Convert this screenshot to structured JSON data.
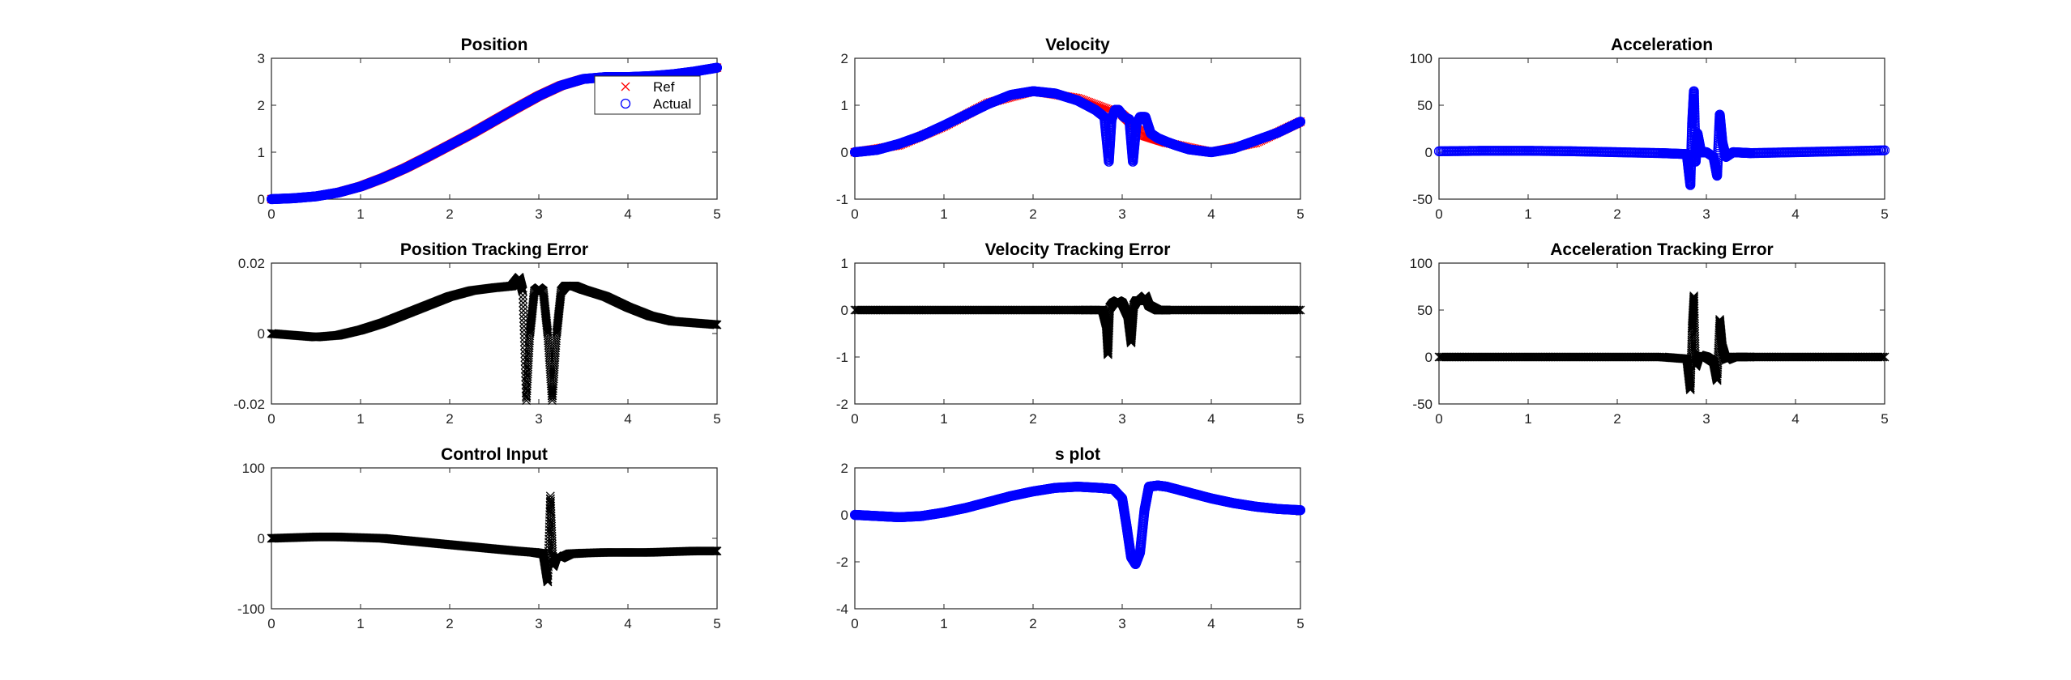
{
  "figure": {
    "background": "#ffffff"
  },
  "chart_data": [
    {
      "id": "position",
      "type": "scatter",
      "title": "Position",
      "xlim": [
        0,
        5
      ],
      "ylim": [
        0,
        3
      ],
      "xticks": [
        0,
        1,
        2,
        3,
        4,
        5
      ],
      "yticks": [
        0,
        1,
        2,
        3
      ],
      "ytick_labels": [
        "0",
        "1",
        "2",
        "3"
      ],
      "legend": {
        "position": "top-right",
        "entries": [
          {
            "label": "Ref",
            "marker": "x",
            "color": "#ff0000"
          },
          {
            "label": "Actual",
            "marker": "o",
            "color": "#0000ff"
          }
        ]
      },
      "series": [
        {
          "name": "Ref",
          "marker": "x",
          "color": "#ff0000",
          "x": [
            0,
            0.25,
            0.5,
            0.75,
            1,
            1.25,
            1.5,
            1.75,
            2,
            2.25,
            2.5,
            2.75,
            3,
            3.25,
            3.5,
            3.75,
            4,
            4.25,
            4.5,
            4.75,
            5
          ],
          "y": [
            0,
            0.02,
            0.06,
            0.14,
            0.27,
            0.45,
            0.66,
            0.9,
            1.15,
            1.4,
            1.67,
            1.94,
            2.2,
            2.42,
            2.56,
            2.6,
            2.6,
            2.62,
            2.66,
            2.72,
            2.8
          ]
        },
        {
          "name": "Actual",
          "marker": "o",
          "color": "#0000ff",
          "x": [
            0,
            0.25,
            0.5,
            0.75,
            1,
            1.25,
            1.5,
            1.75,
            2,
            2.25,
            2.5,
            2.75,
            3,
            3.25,
            3.5,
            3.75,
            4,
            4.25,
            4.5,
            4.75,
            5
          ],
          "y": [
            0,
            0.02,
            0.06,
            0.14,
            0.27,
            0.45,
            0.66,
            0.9,
            1.15,
            1.4,
            1.67,
            1.94,
            2.2,
            2.42,
            2.56,
            2.6,
            2.6,
            2.62,
            2.66,
            2.72,
            2.8
          ]
        }
      ]
    },
    {
      "id": "velocity",
      "type": "scatter",
      "title": "Velocity",
      "xlim": [
        0,
        5
      ],
      "ylim": [
        -1,
        2
      ],
      "xticks": [
        0,
        1,
        2,
        3,
        4,
        5
      ],
      "yticks": [
        -1,
        0,
        1,
        2
      ],
      "ytick_labels": [
        "-1",
        "0",
        "1",
        "2"
      ],
      "series": [
        {
          "name": "Ref",
          "marker": "x",
          "color": "#ff0000",
          "x": [
            0,
            0.5,
            1,
            1.5,
            2,
            2.5,
            3,
            3.25,
            3.5,
            4,
            4.5,
            5
          ],
          "y": [
            0,
            0.15,
            0.55,
            1.05,
            1.3,
            1.15,
            0.8,
            0.35,
            0.2,
            0,
            0.2,
            0.65
          ]
        },
        {
          "name": "Actual",
          "marker": "o",
          "color": "#0000ff",
          "x": [
            0,
            0.25,
            0.5,
            0.75,
            1,
            1.25,
            1.5,
            1.75,
            2,
            2.25,
            2.5,
            2.6,
            2.7,
            2.8,
            2.85,
            2.88,
            2.92,
            2.96,
            3.02,
            3.08,
            3.12,
            3.16,
            3.2,
            3.26,
            3.32,
            3.4,
            3.5,
            3.6,
            3.75,
            4,
            4.25,
            4.5,
            4.75,
            5
          ],
          "y": [
            0,
            0.05,
            0.18,
            0.35,
            0.57,
            0.8,
            1.03,
            1.22,
            1.3,
            1.25,
            1.1,
            1.0,
            0.9,
            0.75,
            -0.2,
            0.7,
            0.9,
            0.9,
            0.75,
            0.7,
            -0.2,
            0.6,
            0.75,
            0.75,
            0.4,
            0.3,
            0.22,
            0.15,
            0.06,
            0,
            0.08,
            0.25,
            0.42,
            0.65
          ]
        }
      ]
    },
    {
      "id": "acceleration",
      "type": "scatter",
      "title": "Acceleration",
      "xlim": [
        0,
        5
      ],
      "ylim": [
        -50,
        100
      ],
      "xticks": [
        0,
        1,
        2,
        3,
        4,
        5
      ],
      "yticks": [
        -50,
        0,
        50,
        100
      ],
      "ytick_labels": [
        "-50",
        "0",
        "50",
        "100"
      ],
      "series": [
        {
          "name": "Actual",
          "marker": "o",
          "color": "#0000ff",
          "x": [
            0,
            0.5,
            1,
            1.5,
            2,
            2.5,
            2.78,
            2.82,
            2.84,
            2.86,
            2.88,
            2.9,
            2.94,
            3.0,
            3.08,
            3.12,
            3.15,
            3.18,
            3.22,
            3.3,
            3.5,
            4,
            4.5,
            5
          ],
          "y": [
            1,
            1.5,
            1.5,
            1,
            0,
            -1,
            -2,
            -35,
            30,
            65,
            -10,
            20,
            0,
            0,
            -5,
            -25,
            40,
            10,
            -5,
            0,
            -1,
            0,
            1,
            2
          ]
        }
      ]
    },
    {
      "id": "pos_err",
      "type": "scatter",
      "title": "Position Tracking Error",
      "xlim": [
        0,
        5
      ],
      "ylim": [
        -0.02,
        0.02
      ],
      "xticks": [
        0,
        1,
        2,
        3,
        4,
        5
      ],
      "yticks": [
        -0.02,
        0,
        0.02
      ],
      "ytick_labels": [
        "-0.02",
        "0",
        "0.02"
      ],
      "series": [
        {
          "name": "",
          "marker": "x",
          "color": "#000000",
          "x": [
            0,
            0.25,
            0.5,
            0.75,
            1,
            1.25,
            1.5,
            1.75,
            2,
            2.25,
            2.5,
            2.7,
            2.78,
            2.82,
            2.86,
            2.9,
            2.95,
            3.0,
            3.05,
            3.1,
            3.15,
            3.2,
            3.25,
            3.3,
            3.4,
            3.5,
            3.75,
            4,
            4.25,
            4.5,
            4.75,
            5
          ],
          "y": [
            0,
            -0.0005,
            -0.001,
            -0.0005,
            0.001,
            0.003,
            0.0055,
            0.008,
            0.0105,
            0.0122,
            0.013,
            0.0135,
            0.016,
            0.012,
            -0.019,
            0.0,
            0.012,
            0.013,
            0.012,
            0.0,
            -0.019,
            0.0,
            0.012,
            0.0135,
            0.0135,
            0.0125,
            0.0105,
            0.0075,
            0.005,
            0.0035,
            0.003,
            0.0025
          ]
        }
      ]
    },
    {
      "id": "vel_err",
      "type": "scatter",
      "title": "Velocity Tracking Error",
      "xlim": [
        0,
        5
      ],
      "ylim": [
        -2,
        1
      ],
      "xticks": [
        0,
        1,
        2,
        3,
        4,
        5
      ],
      "yticks": [
        -2,
        -1,
        0,
        1
      ],
      "ytick_labels": [
        "-2",
        "-1",
        "0",
        "1"
      ],
      "series": [
        {
          "name": "",
          "marker": "x",
          "color": "#000000",
          "x": [
            0,
            0.5,
            1,
            1.5,
            2,
            2.5,
            2.78,
            2.82,
            2.84,
            2.86,
            2.9,
            2.95,
            3.0,
            3.06,
            3.1,
            3.13,
            3.16,
            3.2,
            3.26,
            3.3,
            3.4,
            3.5,
            4,
            4.5,
            5
          ],
          "y": [
            0,
            0,
            0,
            0,
            0,
            0,
            0,
            -0.3,
            -0.95,
            0.05,
            0.15,
            0.2,
            0.15,
            -0.1,
            -0.7,
            0.1,
            0.2,
            0.2,
            0.3,
            0.1,
            0,
            0,
            0,
            0,
            0
          ]
        }
      ]
    },
    {
      "id": "acc_err",
      "type": "scatter",
      "title": "Acceleration Tracking Error",
      "xlim": [
        0,
        5
      ],
      "ylim": [
        -50,
        100
      ],
      "xticks": [
        0,
        1,
        2,
        3,
        4,
        5
      ],
      "yticks": [
        -50,
        0,
        50,
        100
      ],
      "ytick_labels": [
        "-50",
        "0",
        "50",
        "100"
      ],
      "series": [
        {
          "name": "",
          "marker": "x",
          "color": "#000000",
          "x": [
            0,
            0.5,
            1,
            1.5,
            2,
            2.5,
            2.78,
            2.82,
            2.84,
            2.86,
            2.88,
            2.92,
            3.0,
            3.08,
            3.12,
            3.15,
            3.18,
            3.22,
            3.3,
            3.5,
            4,
            4.5,
            5
          ],
          "y": [
            0,
            0,
            0,
            0,
            0,
            0,
            -2,
            -35,
            30,
            65,
            -10,
            2,
            0,
            -5,
            -25,
            40,
            10,
            -3,
            0,
            0,
            0,
            0,
            0
          ]
        }
      ]
    },
    {
      "id": "control",
      "type": "scatter",
      "title": "Control Input",
      "xlim": [
        0,
        5
      ],
      "ylim": [
        -100,
        100
      ],
      "xticks": [
        0,
        1,
        2,
        3,
        4,
        5
      ],
      "yticks": [
        -100,
        0,
        100
      ],
      "ytick_labels": [
        "-100",
        "0",
        "100"
      ],
      "series": [
        {
          "name": "",
          "marker": "x",
          "color": "#000000",
          "x": [
            0,
            0.25,
            0.5,
            0.75,
            1,
            1.25,
            1.5,
            1.75,
            2,
            2.25,
            2.5,
            2.75,
            2.95,
            3.05,
            3.1,
            3.13,
            3.16,
            3.2,
            3.25,
            3.35,
            3.5,
            3.75,
            4,
            4.25,
            4.5,
            4.75,
            5
          ],
          "y": [
            0,
            1,
            2,
            2,
            1,
            0,
            -3,
            -6,
            -9,
            -12,
            -15,
            -18,
            -20,
            -22,
            -62,
            60,
            -40,
            -25,
            -28,
            -22,
            -21,
            -20,
            -20,
            -20,
            -19,
            -18,
            -18
          ]
        }
      ]
    },
    {
      "id": "s_plot",
      "type": "scatter",
      "title": "s plot",
      "xlim": [
        0,
        5
      ],
      "ylim": [
        -4,
        2
      ],
      "xticks": [
        0,
        1,
        2,
        3,
        4,
        5
      ],
      "yticks": [
        -4,
        -2,
        0,
        2
      ],
      "ytick_labels": [
        "-4",
        "-2",
        "0",
        "2"
      ],
      "series": [
        {
          "name": "",
          "marker": "o",
          "color": "#0000ff",
          "x": [
            0,
            0.25,
            0.5,
            0.75,
            1,
            1.25,
            1.5,
            1.75,
            2,
            2.25,
            2.5,
            2.75,
            2.9,
            3.0,
            3.05,
            3.1,
            3.15,
            3.2,
            3.25,
            3.3,
            3.4,
            3.5,
            3.75,
            4,
            4.25,
            4.5,
            4.75,
            5
          ],
          "y": [
            0,
            -0.05,
            -0.1,
            -0.05,
            0.1,
            0.3,
            0.55,
            0.8,
            1.0,
            1.15,
            1.2,
            1.15,
            1.1,
            0.7,
            -0.5,
            -1.8,
            -2.1,
            -1.6,
            0.2,
            1.2,
            1.25,
            1.2,
            0.95,
            0.7,
            0.5,
            0.35,
            0.25,
            0.2
          ]
        }
      ]
    }
  ]
}
